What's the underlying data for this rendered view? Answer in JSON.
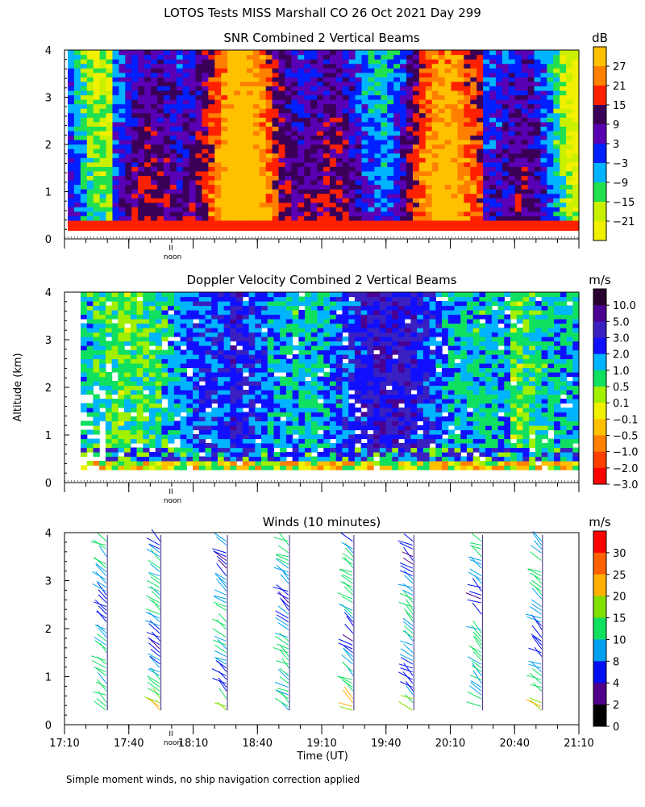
{
  "title": "LOTOS Tests MISS Marshall CO  26 Oct 2021 Day 299",
  "ylabel": "Altitude (km)",
  "xlabel": "Time (UT)",
  "footnote": "Simple moment winds, no ship navigation correction applied",
  "noon_label": "noon",
  "noon_marker": "II",
  "chart_data": [
    {
      "type": "heatmap",
      "title": "SNR Combined 2 Vertical Beams",
      "ylim": [
        0,
        4
      ],
      "yticks": [
        "0",
        "1",
        "2",
        "3",
        "4"
      ],
      "colorbar": {
        "unit": "dB",
        "labels": [
          "27",
          "21",
          "15",
          "9",
          "3",
          "−3",
          "−9",
          "−15",
          "−21"
        ],
        "colors": [
          "#ffc000",
          "#ff8000",
          "#ff2000",
          "#3a0058",
          "#5a00b4",
          "#0020ff",
          "#00b4ff",
          "#20e050",
          "#c8f000",
          "#f0f000"
        ]
      },
      "data_altitude_km": [
        0.25,
        4.0
      ],
      "noon_tick": true
    },
    {
      "type": "heatmap",
      "title": "Doppler Velocity Combined 2 Vertical Beams",
      "ylim": [
        0,
        4
      ],
      "yticks": [
        "0",
        "1",
        "2",
        "3",
        "4"
      ],
      "colorbar": {
        "unit": "m/s",
        "labels": [
          "10.0",
          "5.0",
          "3.0",
          "2.0",
          "1.0",
          "0.5",
          "0.1",
          "−0.1",
          "−0.5",
          "−1.0",
          "−2.0",
          "−3.0"
        ],
        "colors": [
          "#2a0030",
          "#4a0090",
          "#3a20c0",
          "#1010ff",
          "#00b4ff",
          "#10e060",
          "#a0f000",
          "#f0f000",
          "#ffc000",
          "#ff8000",
          "#ff4000",
          "#ff0000"
        ]
      },
      "data_altitude_km": [
        0.25,
        4.0
      ],
      "noon_tick": true
    },
    {
      "type": "scatter",
      "title": "Winds (10 minutes)",
      "ylim": [
        0,
        4
      ],
      "yticks": [
        "0",
        "1",
        "2",
        "3",
        "4"
      ],
      "xticks": [
        "17:10",
        "17:40",
        "18:10",
        "18:40",
        "19:10",
        "19:40",
        "20:10",
        "20:40",
        "21:10"
      ],
      "xlim_minutes_after_17_10": [
        0,
        240
      ],
      "profile_times": [
        "17:30",
        "17:55",
        "18:26",
        "18:55",
        "19:25",
        "19:53",
        "20:25",
        "20:53"
      ],
      "colorbar": {
        "unit": "m/s",
        "labels": [
          "30",
          "25",
          "20",
          "15",
          "10",
          "8",
          "4",
          "2",
          "0"
        ],
        "colors": [
          "#ff0000",
          "#ff6000",
          "#ffb000",
          "#80e000",
          "#10e060",
          "#00a0f0",
          "#0010f0",
          "#50008a",
          "#000000"
        ]
      },
      "noon_tick": true
    }
  ]
}
